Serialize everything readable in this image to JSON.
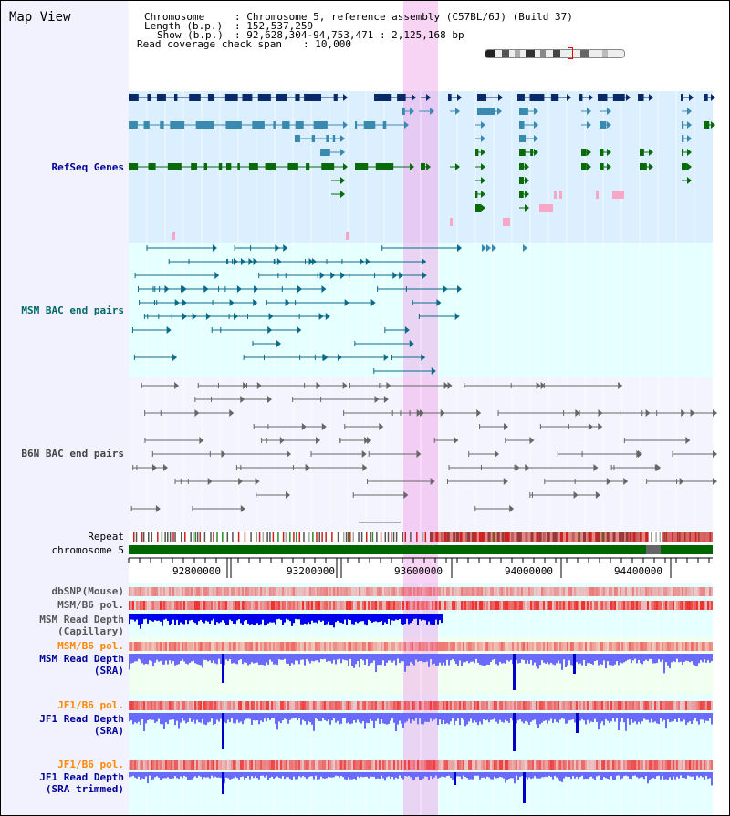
{
  "view": {
    "title": "Map View"
  },
  "info": {
    "chromosome_key": "Chromosome",
    "chromosome_val": ": Chromosome 5, reference assembly (C57BL/6J) (Build 37)",
    "length_key": "Length (b.p.)",
    "length_val": ": 152,537,259",
    "show_key": "Show (b.p.)",
    "show_val": ": 92,628,304-94,753,471 : 2,125,168 bp",
    "coverage_key": "Read coverage check span",
    "coverage_val": ": 10,000"
  },
  "tracks": {
    "refseq": "RefSeq Genes",
    "msm_bac": "MSM BAC end pairs",
    "b6n_bac": "B6N BAC end pairs",
    "repeat": "Repeat",
    "chromosome": "chromosome 5",
    "dbsnp": "dbSNP(Mouse)",
    "msm_b6_pol_1": "MSM/B6 pol.",
    "msm_read_depth_cap_1": "MSM Read Depth",
    "msm_read_depth_cap_2": "(Capillary)",
    "msm_b6_pol_2": "MSM/B6 pol.",
    "msm_read_depth_sra_1": "MSM Read Depth",
    "msm_read_depth_sra_2": "(SRA)",
    "jf1_b6_pol_1": "JF1/B6 pol.",
    "jf1_read_depth_sra_1": "JF1 Read Depth",
    "jf1_read_depth_sra_2": "(SRA)",
    "jf1_b6_pol_2": "JF1/B6 pol.",
    "jf1_read_depth_trim_1": "JF1 Read Depth",
    "jf1_read_depth_trim_2": "(SRA trimmed)"
  },
  "axis": {
    "ticks": [
      "92800000",
      "93200000",
      "93600000",
      "94000000",
      "94400000"
    ]
  },
  "colors": {
    "refseq_band": "#dcefff",
    "bac_band": "#e6ffff",
    "b6n_band": "#f2f2ff",
    "highlight": "#f8d8f8",
    "gene_dark": "#0a2a6a",
    "gene_mid": "#3a8ab0",
    "gene_green": "#0a6a0a",
    "chromosome_bar": "#006600",
    "depth_capillary": "#0000ee",
    "depth_sra": "#6a6aff",
    "pol_red": "#ee3333",
    "label_blue": "#000099",
    "label_teal": "#006666",
    "label_gray": "#444444",
    "label_orange": "#ff8800"
  }
}
